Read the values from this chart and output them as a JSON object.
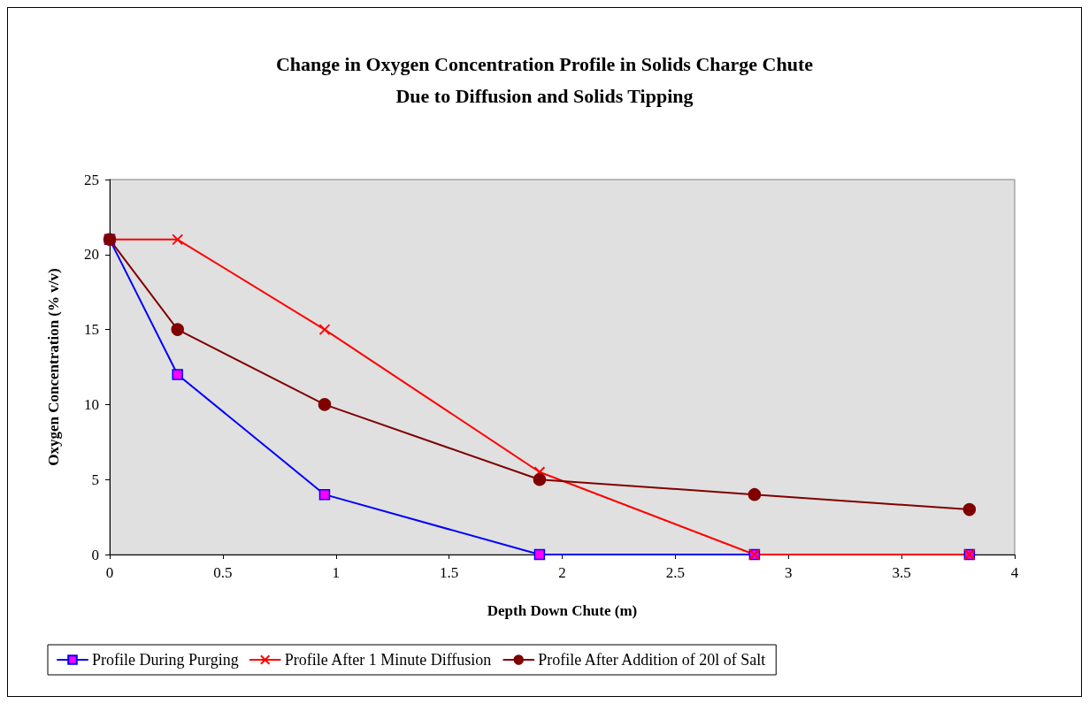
{
  "chart_data": {
    "type": "line",
    "title": "Change in Oxygen Concentration Profile in Solids Charge Chute\nDue to Diffusion and Solids Tipping",
    "xlabel": "Depth Down Chute (m)",
    "ylabel": "Oxygen Concentration (% v/v)",
    "x": [
      0,
      0.3,
      0.95,
      1.9,
      2.85,
      3.8
    ],
    "xlim": [
      0,
      4
    ],
    "xticks": [
      0,
      0.5,
      1,
      1.5,
      2,
      2.5,
      3,
      3.5,
      4
    ],
    "ylim": [
      0,
      25
    ],
    "yticks": [
      0,
      5,
      10,
      15,
      20,
      25
    ],
    "grid": false,
    "legend": "bottom",
    "line_style": "solid",
    "series": [
      {
        "name": "Profile During Purging",
        "color": "#0000ff",
        "marker": "square",
        "values": [
          21,
          12,
          4,
          0,
          0,
          0
        ]
      },
      {
        "name": "Profile After 1 Minute Diffusion",
        "color": "#ff0000",
        "marker": "cross",
        "values": [
          21,
          21,
          15,
          5.5,
          0,
          0
        ]
      },
      {
        "name": "Profile After Addition of 20l of Salt",
        "color": "#800000",
        "marker": "circle",
        "values": [
          21,
          15,
          10,
          5,
          4,
          3
        ]
      }
    ]
  }
}
